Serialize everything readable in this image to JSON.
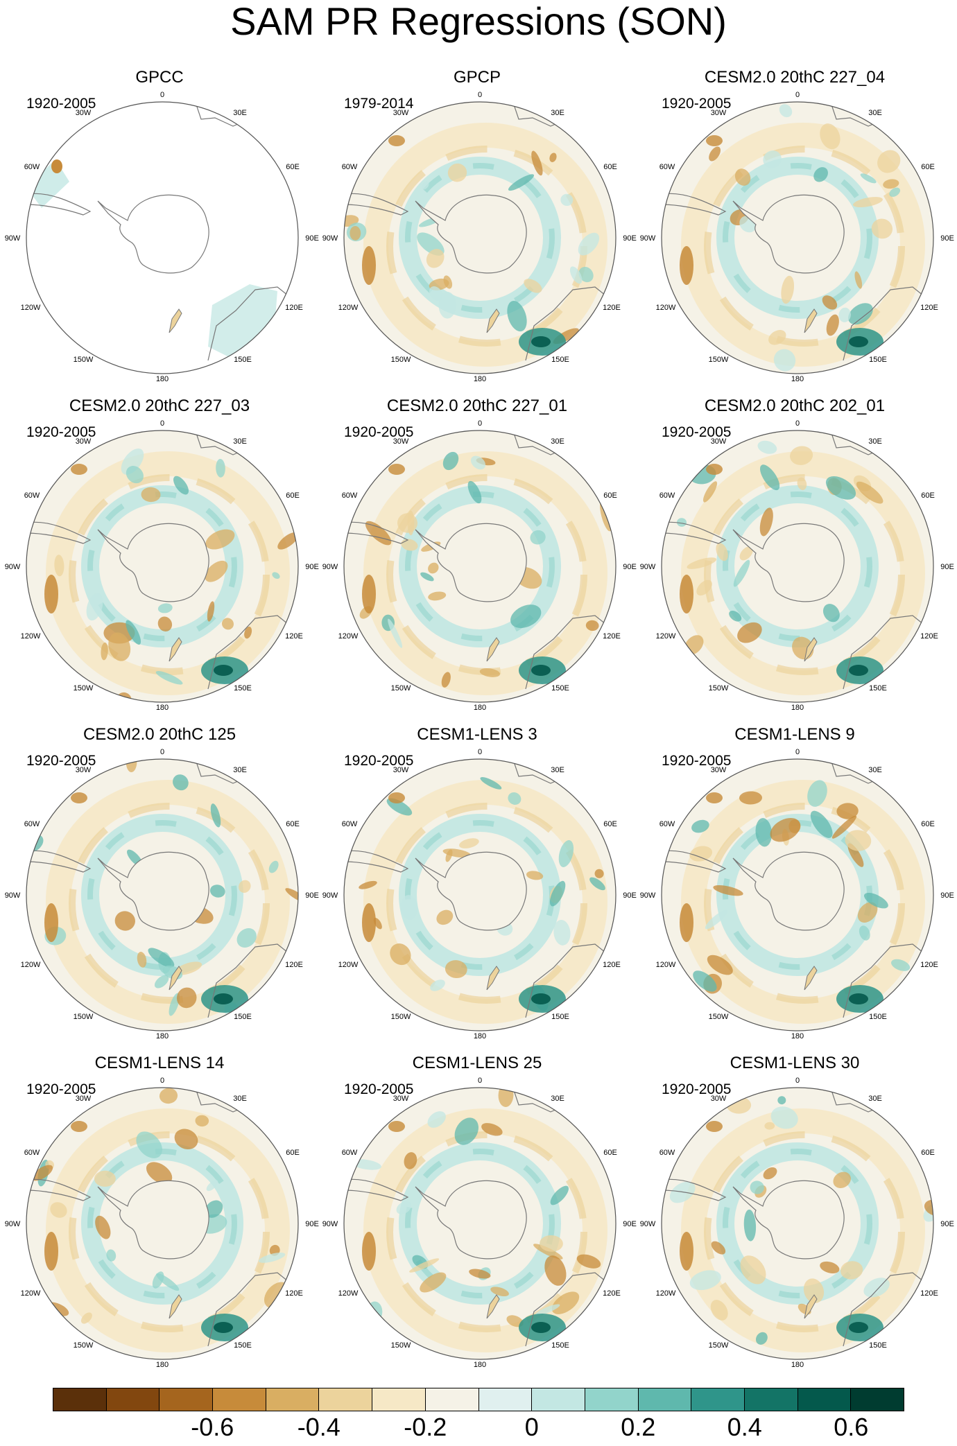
{
  "title": "SAM PR Regressions (SON)",
  "colors": {
    "land": "#777777",
    "ring": "#555555",
    "palette": [
      "#5b300a",
      "#82470f",
      "#a5651e",
      "#c78b3a",
      "#d9ae62",
      "#ecd39c",
      "#f6e8c6",
      "#f5f2e7",
      "#e0f0ef",
      "#c3e7e3",
      "#92d4cb",
      "#5fb8ad",
      "#2f958a",
      "#137466",
      "#04594c",
      "#003c30"
    ]
  },
  "maps": [
    {
      "title": "GPCC",
      "period": "1920-2005"
    },
    {
      "title": "GPCP",
      "period": "1979-2014"
    },
    {
      "title": "CESM2.0 20thC 227_04",
      "period": "1920-2005"
    },
    {
      "title": "CESM2.0 20thC 227_03",
      "period": "1920-2005"
    },
    {
      "title": "CESM2.0 20thC 227_01",
      "period": "1920-2005"
    },
    {
      "title": "CESM2.0 20thC 202_01",
      "period": "1920-2005"
    },
    {
      "title": "CESM2.0 20thC 125",
      "period": "1920-2005"
    },
    {
      "title": "CESM1-LENS 3",
      "period": "1920-2005"
    },
    {
      "title": "CESM1-LENS 9",
      "period": "1920-2005"
    },
    {
      "title": "CESM1-LENS 14",
      "period": "1920-2005"
    },
    {
      "title": "CESM1-LENS 25",
      "period": "1920-2005"
    },
    {
      "title": "CESM1-LENS 30",
      "period": "1920-2005"
    }
  ],
  "map_labels": {
    "top": "0",
    "bottom": "180",
    "ul": "30W",
    "ur": "30E",
    "l60": "60W",
    "r60": "60E",
    "l90": "90W",
    "r90": "90E",
    "l120": "120W",
    "r120": "120E",
    "ll": "150W",
    "lr": "150E"
  },
  "colorbar": {
    "ticks": [
      "-0.6",
      "-0.4",
      "-0.2",
      "0",
      "0.2",
      "0.4",
      "0.6"
    ]
  }
}
